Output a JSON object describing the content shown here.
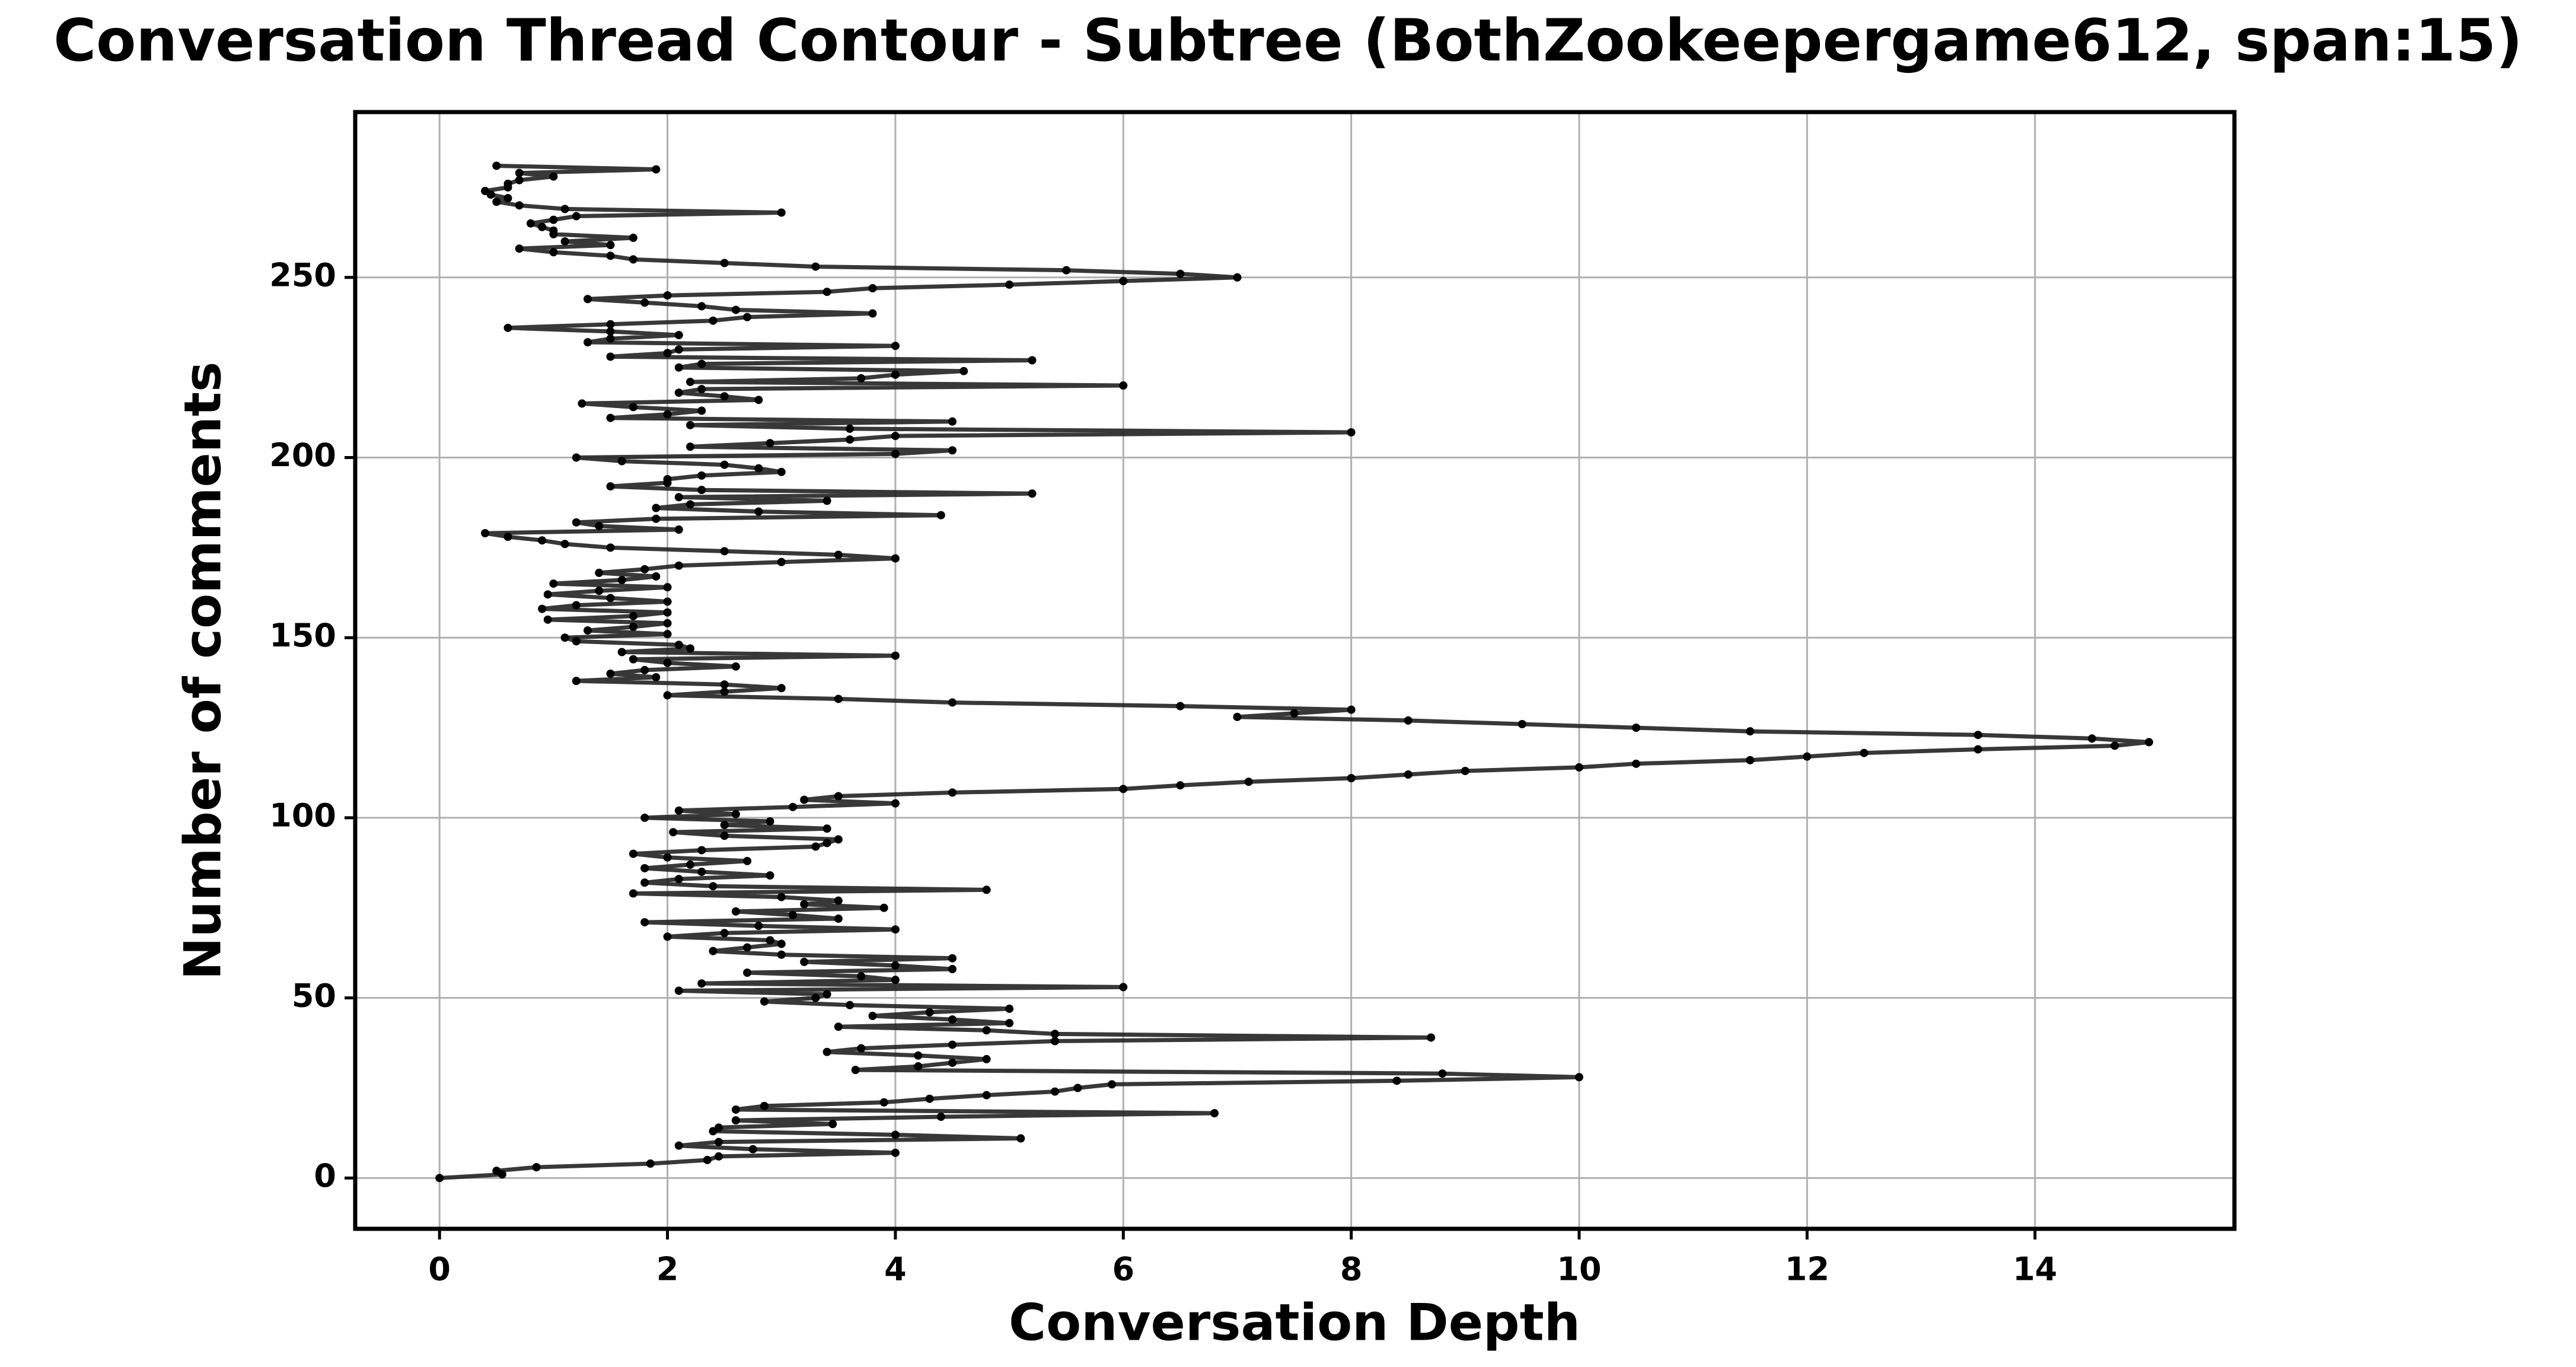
{
  "chart_data": {
    "type": "line",
    "title": "Conversation Thread Contour  - Subtree (BothZookeepergame612, span:15)",
    "x_label": "Conversation Depth",
    "y_label": "Number of comments",
    "color": "#222222",
    "marker_color": "#000000",
    "grid": true,
    "xlim": [
      -0.74,
      15.75
    ],
    "ylim": [
      -14.1,
      295.9
    ],
    "xticks": [
      0,
      2,
      4,
      6,
      8,
      10,
      12,
      14
    ],
    "yticks": [
      0,
      50,
      100,
      150,
      200,
      250
    ],
    "x": [
      0,
      0.55,
      0.5,
      0.85,
      1.85,
      2.35,
      2.45,
      4,
      2.75,
      2.1,
      2.45,
      5.1,
      4,
      2.4,
      2.45,
      3.45,
      2.6,
      4.4,
      6.8,
      2.6,
      2.85,
      3.9,
      4.3,
      4.8,
      5.4,
      5.6,
      5.9,
      8.4,
      10,
      8.8,
      3.65,
      4.2,
      4.5,
      4.8,
      4.2,
      3.4,
      3.7,
      4.5,
      5.4,
      8.7,
      5.4,
      4.8,
      3.5,
      5,
      4.5,
      3.8,
      4.3,
      5,
      3.6,
      2.85,
      3.3,
      3.4,
      2.1,
      6,
      2.3,
      4,
      3.7,
      2.7,
      4.5,
      4,
      3.2,
      4.5,
      3,
      2.4,
      2.7,
      3,
      2.9,
      2,
      2.5,
      4,
      2.8,
      1.8,
      3.5,
      3.1,
      2.6,
      3.9,
      3.2,
      3.5,
      3,
      1.7,
      4.8,
      2.4,
      1.8,
      2.1,
      2.9,
      2.3,
      1.8,
      2.2,
      2.7,
      2,
      1.7,
      2.3,
      3.3,
      3.4,
      3.5,
      2.5,
      2.05,
      3.4,
      2.5,
      2.9,
      1.8,
      2.6,
      2.1,
      3.1,
      4,
      3.2,
      3.5,
      4.5,
      6,
      6.5,
      7.1,
      8,
      8.5,
      9,
      10,
      10.5,
      11.5,
      12,
      12.5,
      13.5,
      14.7,
      15,
      14.5,
      13.5,
      11.5,
      10.5,
      9.5,
      8.5,
      7,
      7.5,
      8,
      6.5,
      4.5,
      3.5,
      2,
      2.5,
      3,
      2.5,
      1.2,
      1.9,
      1.5,
      1.8,
      2.6,
      2,
      1.7,
      4,
      1.6,
      2.2,
      2.1,
      1.2,
      1.1,
      2,
      1.3,
      1.7,
      2,
      0.95,
      1.7,
      2,
      0.9,
      1.2,
      2,
      1.5,
      0.95,
      1.4,
      2,
      1,
      1.6,
      1.9,
      1.4,
      1.8,
      2.1,
      3,
      4,
      3.5,
      2.5,
      1.5,
      1.1,
      0.9,
      0.6,
      0.4,
      2.1,
      1.4,
      1.2,
      1.9,
      4.4,
      2.8,
      1.9,
      2.2,
      3.4,
      2.1,
      5.2,
      2.3,
      1.5,
      2,
      2,
      2.3,
      3,
      2.8,
      2.5,
      1.6,
      1.2,
      4,
      4.5,
      2.2,
      2.9,
      3.6,
      4,
      8,
      3.6,
      2.2,
      4.5,
      1.5,
      2,
      2.3,
      1.7,
      1.25,
      2.8,
      2.5,
      2.1,
      2.3,
      6,
      2.2,
      3.7,
      4,
      4.6,
      2.1,
      2.3,
      5.2,
      1.5,
      2,
      2.1,
      4,
      1.3,
      1.5,
      2.1,
      1.5,
      0.6,
      1.5,
      2.4,
      2.7,
      3.8,
      2.6,
      2.3,
      1.8,
      1.3,
      2,
      3.4,
      3.8,
      5,
      6,
      7,
      6.5,
      5.5,
      3.3,
      2.5,
      1.7,
      1.5,
      1,
      0.7,
      1.5,
      1.1,
      1.7,
      1,
      1,
      0.9,
      0.8,
      1,
      1.2,
      3,
      1.1,
      0.7,
      0.5,
      0.6,
      0.45,
      0.4,
      0.6,
      0.6,
      0.7,
      1,
      0.7,
      1.9,
      0.5
    ],
    "values": [
      0,
      1,
      2,
      3,
      4,
      5,
      6,
      7,
      8,
      9,
      10,
      11,
      12,
      13,
      14,
      15,
      16,
      17,
      18,
      19,
      20,
      21,
      22,
      23,
      24,
      25,
      26,
      27,
      28,
      29,
      30,
      31,
      32,
      33,
      34,
      35,
      36,
      37,
      38,
      39,
      40,
      41,
      42,
      43,
      44,
      45,
      46,
      47,
      48,
      49,
      50,
      51,
      52,
      53,
      54,
      55,
      56,
      57,
      58,
      59,
      60,
      61,
      62,
      63,
      64,
      65,
      66,
      67,
      68,
      69,
      70,
      71,
      72,
      73,
      74,
      75,
      76,
      77,
      78,
      79,
      80,
      81,
      82,
      83,
      84,
      85,
      86,
      87,
      88,
      89,
      90,
      91,
      92,
      93,
      94,
      95,
      96,
      97,
      98,
      99,
      100,
      101,
      102,
      103,
      104,
      105,
      106,
      107,
      108,
      109,
      110,
      111,
      112,
      113,
      114,
      115,
      116,
      117,
      118,
      119,
      120,
      121,
      122,
      123,
      124,
      125,
      126,
      127,
      128,
      129,
      130,
      131,
      132,
      133,
      134,
      135,
      136,
      137,
      138,
      139,
      140,
      141,
      142,
      143,
      144,
      145,
      146,
      147,
      148,
      149,
      150,
      151,
      152,
      153,
      154,
      155,
      156,
      157,
      158,
      159,
      160,
      161,
      162,
      163,
      164,
      165,
      166,
      167,
      168,
      169,
      170,
      171,
      172,
      173,
      174,
      175,
      176,
      177,
      178,
      179,
      180,
      181,
      182,
      183,
      184,
      185,
      186,
      187,
      188,
      189,
      190,
      191,
      192,
      193,
      194,
      195,
      196,
      197,
      198,
      199,
      200,
      201,
      202,
      203,
      204,
      205,
      206,
      207,
      208,
      209,
      210,
      211,
      212,
      213,
      214,
      215,
      216,
      217,
      218,
      219,
      220,
      221,
      222,
      223,
      224,
      225,
      226,
      227,
      228,
      229,
      230,
      231,
      232,
      233,
      234,
      235,
      236,
      237,
      238,
      239,
      240,
      241,
      242,
      243,
      244,
      245,
      246,
      247,
      248,
      249,
      250,
      251,
      252,
      253,
      254,
      255,
      256,
      257,
      258,
      259,
      260,
      261,
      262,
      263,
      264,
      265,
      266,
      267,
      268,
      269,
      270,
      271,
      272,
      273,
      274,
      275,
      276,
      277,
      278,
      279,
      280,
      281
    ]
  }
}
